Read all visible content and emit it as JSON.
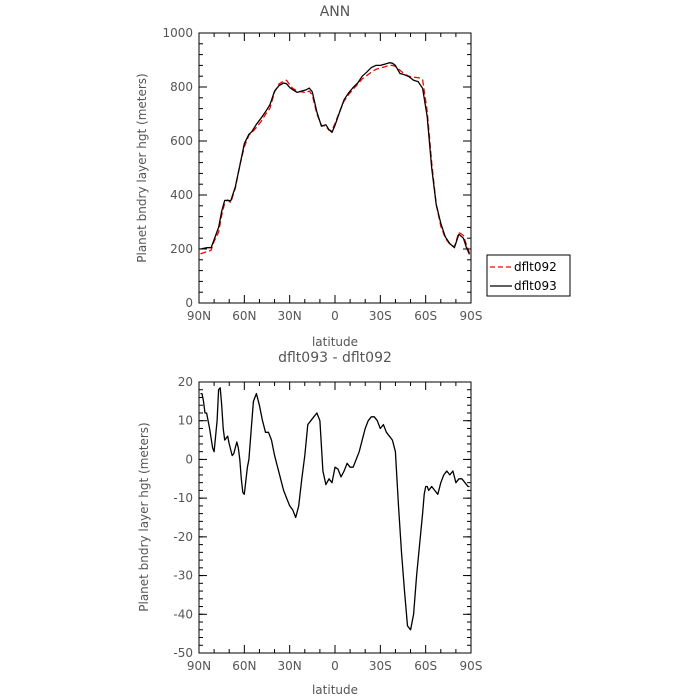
{
  "chart_data": [
    {
      "type": "line",
      "title": "ANN",
      "xlabel": "latitude",
      "ylabel": "Planet bndry layer hgt (meters)",
      "xlim": [
        90,
        -90
      ],
      "ylim": [
        0,
        1000
      ],
      "x_ticks": [
        90,
        60,
        30,
        0,
        -30,
        -60,
        -90
      ],
      "x_tick_labels": [
        "90N",
        "60N",
        "30N",
        "0",
        "30S",
        "60S",
        "90S"
      ],
      "y_ticks": [
        0,
        200,
        400,
        600,
        800,
        1000
      ],
      "y_tick_labels": [
        "0",
        "200",
        "400",
        "600",
        "800",
        "1000"
      ],
      "legend_position": "right",
      "series": [
        {
          "name": "dflt092",
          "color": "#ff0000",
          "dash": "dashed",
          "x": [
            89,
            85,
            82,
            80,
            77,
            75,
            73,
            71,
            69,
            66,
            63,
            60,
            57,
            55,
            52,
            49,
            46,
            43,
            40,
            37,
            34,
            32,
            30,
            28,
            25,
            22,
            19,
            17,
            15,
            12,
            9,
            6,
            4,
            2,
            0,
            -3,
            -6,
            -9,
            -12,
            -15,
            -18,
            -21,
            -24,
            -27,
            -30,
            -33,
            -36,
            -38,
            -40,
            -43,
            -46,
            -49,
            -52,
            -55,
            -58,
            -61,
            -64,
            -67,
            -70,
            -73,
            -76,
            -79,
            -82,
            -85,
            -87,
            -89
          ],
          "y": [
            182,
            190,
            195,
            228,
            262,
            325,
            370,
            382,
            372,
            425,
            510,
            578,
            622,
            632,
            650,
            672,
            698,
            722,
            782,
            812,
            822,
            825,
            808,
            795,
            785,
            782,
            779,
            785,
            770,
            700,
            658,
            655,
            640,
            638,
            665,
            708,
            748,
            772,
            792,
            810,
            830,
            842,
            855,
            865,
            870,
            875,
            880,
            880,
            876,
            862,
            848,
            840,
            836,
            835,
            828,
            710,
            520,
            365,
            285,
            240,
            218,
            208,
            262,
            250,
            215,
            185
          ]
        },
        {
          "name": "dflt093",
          "color": "#000000",
          "dash": "solid",
          "x": [
            89,
            85,
            82,
            80,
            77,
            75,
            73,
            71,
            69,
            66,
            63,
            60,
            57,
            55,
            52,
            49,
            46,
            43,
            40,
            37,
            34,
            32,
            30,
            28,
            25,
            22,
            19,
            17,
            15,
            12,
            9,
            6,
            4,
            2,
            0,
            -3,
            -6,
            -9,
            -12,
            -15,
            -18,
            -21,
            -24,
            -27,
            -30,
            -33,
            -36,
            -38,
            -40,
            -43,
            -46,
            -49,
            -52,
            -55,
            -58,
            -61,
            -64,
            -67,
            -70,
            -73,
            -76,
            -79,
            -82,
            -85,
            -87,
            -89
          ],
          "y": [
            200,
            205,
            205,
            235,
            280,
            340,
            380,
            380,
            378,
            430,
            508,
            590,
            625,
            635,
            662,
            684,
            708,
            735,
            785,
            805,
            815,
            812,
            798,
            790,
            780,
            785,
            790,
            796,
            782,
            707,
            655,
            660,
            642,
            632,
            658,
            706,
            753,
            778,
            798,
            815,
            840,
            855,
            872,
            880,
            880,
            885,
            890,
            888,
            880,
            850,
            845,
            838,
            825,
            820,
            795,
            690,
            500,
            365,
            295,
            245,
            220,
            205,
            255,
            240,
            205,
            180
          ]
        }
      ]
    },
    {
      "type": "line",
      "title": "dflt093 - dflt092",
      "xlabel": "latitude",
      "ylabel": "Planet bndry layer hgt (meters)",
      "xlim": [
        90,
        -90
      ],
      "ylim": [
        -50,
        20
      ],
      "x_ticks": [
        90,
        60,
        30,
        0,
        -30,
        -60,
        -90
      ],
      "x_tick_labels": [
        "90N",
        "60N",
        "30N",
        "0",
        "30S",
        "60S",
        "90S"
      ],
      "y_ticks": [
        -50,
        -40,
        -30,
        -20,
        -10,
        0,
        10,
        20
      ],
      "y_tick_labels": [
        "-50",
        "-40",
        "-30",
        "-20",
        "-10",
        "0",
        "10",
        "20"
      ],
      "series": [
        {
          "color": "#000000",
          "dash": "solid",
          "x": [
            89,
            88,
            87,
            86,
            85,
            83,
            81,
            80,
            78,
            77,
            76,
            75,
            74,
            73,
            71,
            70,
            68,
            67,
            65,
            64,
            63,
            62,
            61,
            60,
            58,
            57,
            56,
            55,
            54,
            52,
            50,
            48,
            46,
            44,
            42,
            40,
            38,
            36,
            34,
            32,
            30,
            28,
            26,
            24,
            22,
            20,
            18,
            16,
            14,
            12,
            10,
            8,
            6,
            4,
            2,
            0,
            -2,
            -4,
            -6,
            -8,
            -10,
            -12,
            -14,
            -16,
            -18,
            -20,
            -22,
            -24,
            -26,
            -28,
            -30,
            -32,
            -34,
            -36,
            -38,
            -40,
            -42,
            -44,
            -46,
            -48,
            -50,
            -52,
            -54,
            -56,
            -58,
            -59,
            -60,
            -61,
            -62,
            -64,
            -66,
            -68,
            -70,
            -72,
            -74,
            -76,
            -78,
            -80,
            -82,
            -84,
            -86,
            -88,
            -89
          ],
          "y": [
            17,
            17,
            15,
            12,
            12,
            8,
            3,
            2,
            10,
            18,
            18.5,
            14,
            8,
            5,
            6,
            4,
            1,
            1.5,
            4.5,
            3,
            0,
            -5,
            -8.5,
            -9,
            -2,
            0,
            5,
            10,
            15,
            17,
            14,
            10,
            7,
            7,
            5,
            1,
            -2,
            -5,
            -8,
            -10,
            -12,
            -13,
            -15,
            -12,
            -5,
            1,
            9,
            10,
            11,
            12,
            10,
            -3,
            -6.5,
            -5,
            -6,
            -2,
            -2.5,
            -4.5,
            -3,
            -1,
            -2,
            -2,
            0,
            2,
            5,
            8,
            10,
            11,
            11,
            10,
            8,
            9,
            7,
            6,
            5,
            2,
            -12,
            -24,
            -34,
            -43,
            -44,
            -40,
            -30,
            -22,
            -14,
            -9,
            -7,
            -7,
            -8,
            -7,
            -8,
            -9,
            -6,
            -4,
            -3,
            -4,
            -3,
            -6,
            -5,
            -5,
            -6,
            -7,
            -7
          ]
        }
      ]
    }
  ]
}
